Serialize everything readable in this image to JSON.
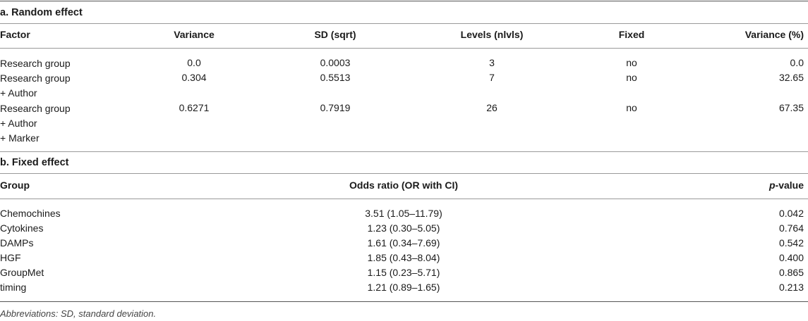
{
  "random": {
    "title": "a. Random effect",
    "headers": {
      "factor": "Factor",
      "variance": "Variance",
      "sd": "SD (sqrt)",
      "levels": "Levels (nlvls)",
      "fixed": "Fixed",
      "variance_pct": "Variance (%)"
    },
    "rows": [
      {
        "factor_lines": [
          "Research group"
        ],
        "variance": "0.0",
        "sd": "0.0003",
        "levels": "3",
        "fixed": "no",
        "variance_pct": "0.0"
      },
      {
        "factor_lines": [
          "Research group",
          "+ Author"
        ],
        "variance": "0.304",
        "sd": "0.5513",
        "levels": "7",
        "fixed": "no",
        "variance_pct": "32.65"
      },
      {
        "factor_lines": [
          "Research group",
          "+ Author",
          "+ Marker"
        ],
        "variance": "0.6271",
        "sd": "0.7919",
        "levels": "26",
        "fixed": "no",
        "variance_pct": "67.35"
      }
    ]
  },
  "fixed": {
    "title": "b. Fixed effect",
    "headers": {
      "group": "Group",
      "odds_ratio": "Odds ratio (OR with CI)",
      "pvalue_italic": "p",
      "pvalue_rest": "-value"
    },
    "rows": [
      {
        "group": "Chemochines",
        "odds_ratio": "3.51 (1.05–11.79)",
        "pvalue": "0.042"
      },
      {
        "group": "Cytokines",
        "odds_ratio": "1.23 (0.30–5.05)",
        "pvalue": "0.764"
      },
      {
        "group": "DAMPs",
        "odds_ratio": "1.61 (0.34–7.69)",
        "pvalue": "0.542"
      },
      {
        "group": "HGF",
        "odds_ratio": "1.85 (0.43–8.04)",
        "pvalue": "0.400"
      },
      {
        "group": "GroupMet",
        "odds_ratio": "1.15 (0.23–5.71)",
        "pvalue": "0.865"
      },
      {
        "group": "timing",
        "odds_ratio": "1.21 (0.89–1.65)",
        "pvalue": "0.213"
      }
    ]
  },
  "footnote": "Abbreviations: SD, standard deviation."
}
